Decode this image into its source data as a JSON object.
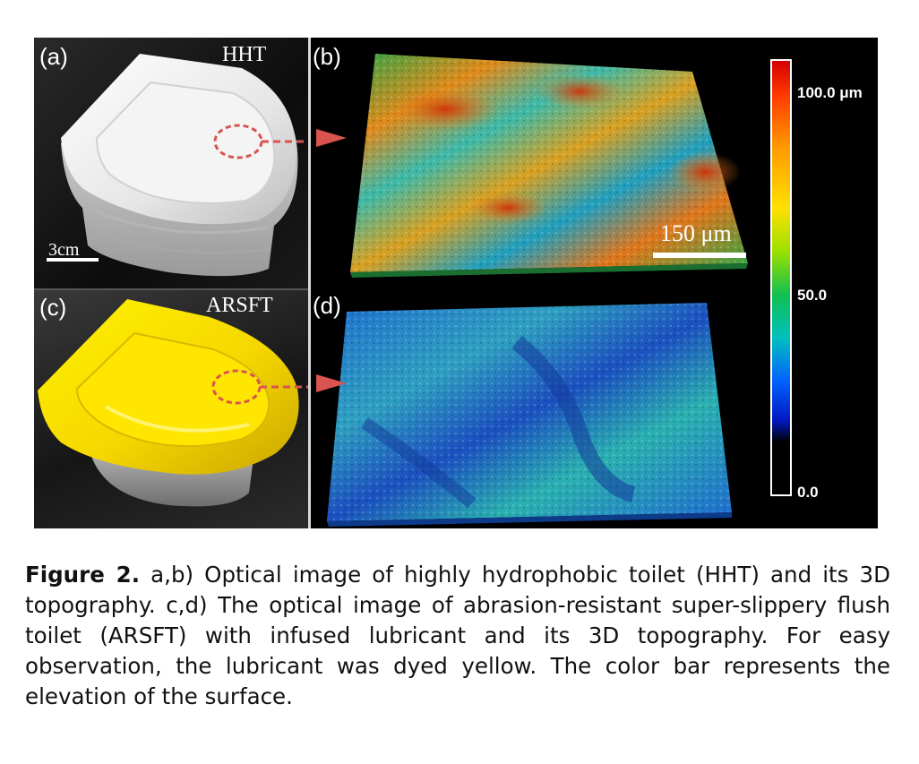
{
  "panels": {
    "a": {
      "label": "(a)",
      "title": "HHT",
      "scale": "3cm"
    },
    "b": {
      "label": "(b)",
      "scale": "150 μm"
    },
    "c": {
      "label": "(c)",
      "title": "ARSFT"
    },
    "d": {
      "label": "(d)"
    }
  },
  "colorbar": {
    "max_label": "100.0 μm",
    "mid_label": "50.0",
    "min_label": "0.0",
    "colors": [
      "#d40000",
      "#ff9a00",
      "#ffe000",
      "#10c050",
      "#00c0c0",
      "#0060ff",
      "#000000"
    ]
  },
  "caption": {
    "label": "Figure 2.",
    "text": " a,b) Optical image of highly hydrophobic toilet (HHT) and its 3D topography. c,d) The optical image of abrasion-resistant super-slippery flush toilet (ARSFT) with infused lubricant and its 3D topography. For easy observation, the lubricant was dyed yellow. The color bar represents the elevation of the surface."
  }
}
